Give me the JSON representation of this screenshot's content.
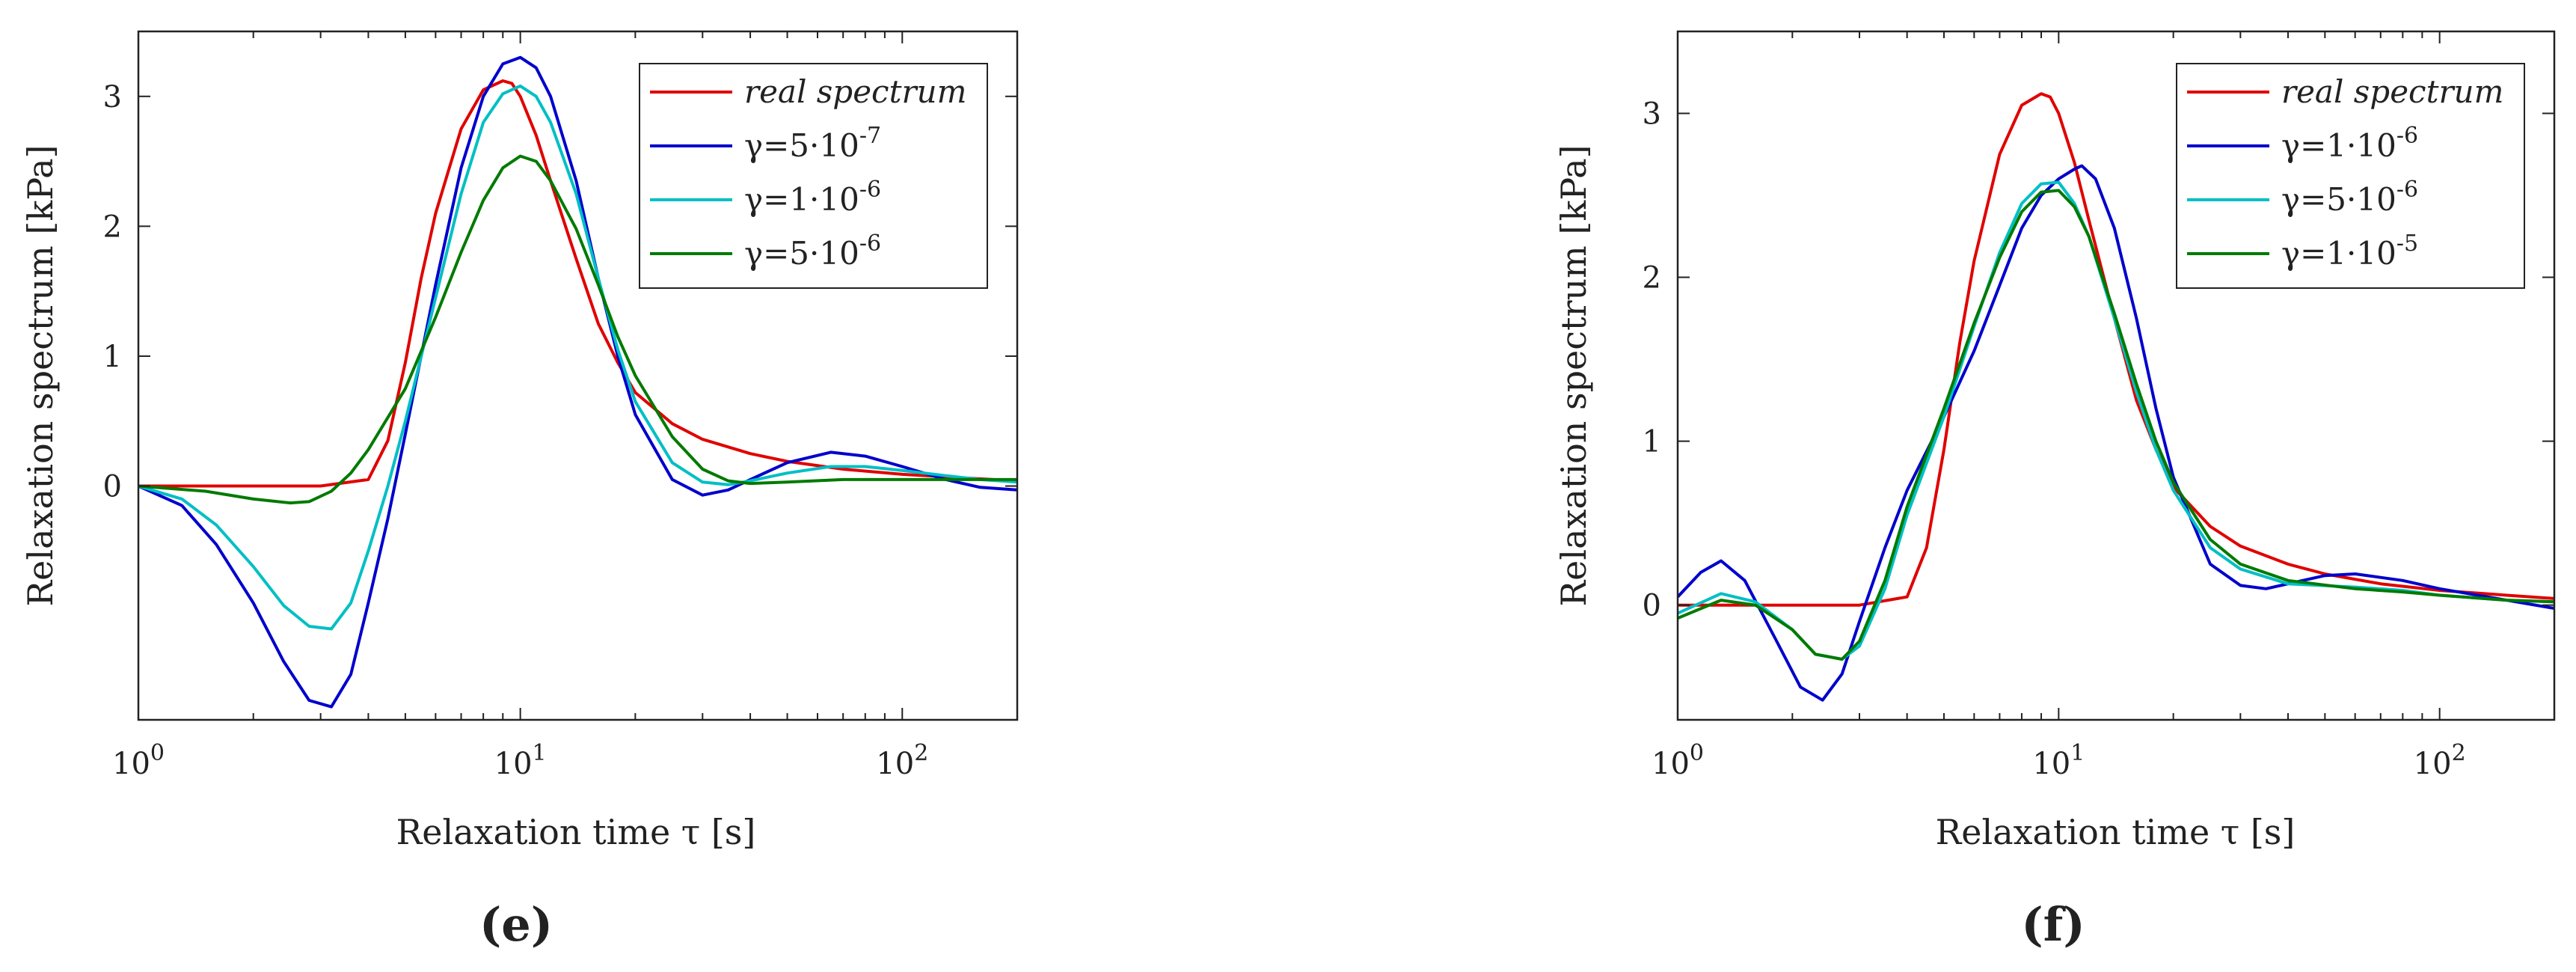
{
  "chart_data": [
    {
      "panel": "(e)",
      "type": "line",
      "xscale": "log",
      "xlabel": "Relaxation time τ [s]",
      "ylabel": "Relaxation spectrum  [kPa]",
      "xlim": [
        1,
        200
      ],
      "ylim": [
        -1.8,
        3.5
      ],
      "xticks": [
        1,
        10,
        100
      ],
      "xtick_labels": [
        {
          "base": "10",
          "exp": "0"
        },
        {
          "base": "10",
          "exp": "1"
        },
        {
          "base": "10",
          "exp": "2"
        }
      ],
      "yticks": [
        0,
        1,
        2,
        3
      ],
      "ytick_labels": [
        "0",
        "1",
        "2",
        "3"
      ],
      "legend_position": "top-right",
      "series": [
        {
          "name": "real spectrum",
          "color": "#e00000",
          "italic": true,
          "legend": {
            "prefix": "real spectrum"
          },
          "x": [
            1.0,
            2.0,
            3.0,
            4.0,
            4.5,
            5.0,
            5.5,
            6.0,
            7.0,
            8.0,
            9.0,
            9.5,
            10.0,
            11.0,
            12.0,
            14.0,
            16.0,
            18.0,
            20.0,
            25.0,
            30.0,
            40.0,
            50.0,
            70.0,
            100.0,
            150.0,
            200.0
          ],
          "y": [
            0.0,
            0.0,
            0.0,
            0.05,
            0.35,
            0.95,
            1.6,
            2.1,
            2.75,
            3.05,
            3.12,
            3.1,
            3.0,
            2.7,
            2.35,
            1.75,
            1.25,
            0.95,
            0.72,
            0.48,
            0.36,
            0.25,
            0.19,
            0.13,
            0.09,
            0.06,
            0.04
          ]
        },
        {
          "name": "γ=5·10⁻⁷",
          "color": "#0000cc",
          "italic": false,
          "legend": {
            "prefix": "γ=5·10",
            "exp": "-7"
          },
          "x": [
            1.0,
            1.3,
            1.6,
            2.0,
            2.4,
            2.8,
            3.2,
            3.6,
            4.0,
            4.5,
            5.0,
            6.0,
            7.0,
            8.0,
            9.0,
            10.0,
            11.0,
            12.0,
            14.0,
            16.0,
            18.0,
            20.0,
            25.0,
            30.0,
            35.0,
            40.0,
            50.0,
            65.0,
            80.0,
            100.0,
            130.0,
            160.0,
            200.0
          ],
          "y": [
            0.0,
            -0.15,
            -0.45,
            -0.9,
            -1.35,
            -1.65,
            -1.7,
            -1.45,
            -0.9,
            -0.25,
            0.4,
            1.55,
            2.45,
            3.0,
            3.25,
            3.3,
            3.22,
            3.0,
            2.35,
            1.6,
            1.0,
            0.55,
            0.05,
            -0.07,
            -0.03,
            0.05,
            0.18,
            0.26,
            0.23,
            0.15,
            0.05,
            -0.01,
            -0.03
          ]
        },
        {
          "name": "γ=1·10⁻⁶",
          "color": "#00bfc4",
          "italic": false,
          "legend": {
            "prefix": "γ=1·10",
            "exp": "-6"
          },
          "x": [
            1.0,
            1.3,
            1.6,
            2.0,
            2.4,
            2.8,
            3.2,
            3.6,
            4.0,
            4.5,
            5.0,
            6.0,
            7.0,
            8.0,
            9.0,
            10.0,
            11.0,
            12.0,
            14.0,
            16.0,
            18.0,
            20.0,
            25.0,
            30.0,
            35.0,
            40.0,
            50.0,
            65.0,
            80.0,
            100.0,
            130.0,
            160.0,
            200.0
          ],
          "y": [
            0.0,
            -0.1,
            -0.3,
            -0.62,
            -0.92,
            -1.08,
            -1.1,
            -0.9,
            -0.5,
            0.0,
            0.5,
            1.45,
            2.25,
            2.8,
            3.02,
            3.08,
            3.0,
            2.8,
            2.25,
            1.6,
            1.05,
            0.65,
            0.18,
            0.03,
            0.01,
            0.04,
            0.1,
            0.15,
            0.15,
            0.12,
            0.08,
            0.05,
            0.03
          ]
        },
        {
          "name": "γ=5·10⁻⁶",
          "color": "#007a00",
          "italic": false,
          "legend": {
            "prefix": "γ=5·10",
            "exp": "-6"
          },
          "x": [
            1.0,
            1.5,
            2.0,
            2.5,
            2.8,
            3.2,
            3.6,
            4.0,
            5.0,
            6.0,
            7.0,
            8.0,
            9.0,
            10.0,
            11.0,
            12.0,
            14.0,
            16.0,
            18.0,
            20.0,
            25.0,
            30.0,
            35.0,
            40.0,
            50.0,
            70.0,
            100.0,
            150.0,
            200.0
          ],
          "y": [
            0.0,
            -0.04,
            -0.1,
            -0.13,
            -0.12,
            -0.04,
            0.1,
            0.28,
            0.75,
            1.3,
            1.8,
            2.2,
            2.45,
            2.54,
            2.5,
            2.35,
            1.98,
            1.55,
            1.15,
            0.85,
            0.38,
            0.13,
            0.04,
            0.02,
            0.03,
            0.05,
            0.05,
            0.05,
            0.05
          ]
        }
      ]
    },
    {
      "panel": "(f)",
      "type": "line",
      "xscale": "log",
      "xlabel": "Relaxation time τ [s]",
      "ylabel": "Relaxation spectrum  [kPa]",
      "xlim": [
        1,
        200
      ],
      "ylim": [
        -0.7,
        3.5
      ],
      "xticks": [
        1,
        10,
        100
      ],
      "xtick_labels": [
        {
          "base": "10",
          "exp": "0"
        },
        {
          "base": "10",
          "exp": "1"
        },
        {
          "base": "10",
          "exp": "2"
        }
      ],
      "yticks": [
        0,
        1,
        2,
        3
      ],
      "ytick_labels": [
        "0",
        "1",
        "2",
        "3"
      ],
      "legend_position": "top-right",
      "series": [
        {
          "name": "real spectrum",
          "color": "#e00000",
          "italic": true,
          "legend": {
            "prefix": "real spectrum"
          },
          "x": [
            1.0,
            2.0,
            3.0,
            4.0,
            4.5,
            5.0,
            5.5,
            6.0,
            7.0,
            8.0,
            9.0,
            9.5,
            10.0,
            11.0,
            12.0,
            14.0,
            16.0,
            18.0,
            20.0,
            25.0,
            30.0,
            40.0,
            50.0,
            70.0,
            100.0,
            150.0,
            200.0
          ],
          "y": [
            0.0,
            0.0,
            0.0,
            0.05,
            0.35,
            0.95,
            1.6,
            2.1,
            2.75,
            3.05,
            3.12,
            3.1,
            3.0,
            2.7,
            2.35,
            1.75,
            1.25,
            0.95,
            0.72,
            0.48,
            0.36,
            0.25,
            0.19,
            0.13,
            0.09,
            0.06,
            0.04
          ]
        },
        {
          "name": "γ=1·10⁻⁶",
          "color": "#0000cc",
          "italic": false,
          "legend": {
            "prefix": "γ=1·10",
            "exp": "-6"
          },
          "x": [
            1.0,
            1.15,
            1.3,
            1.5,
            1.8,
            2.1,
            2.4,
            2.7,
            3.0,
            3.5,
            4.0,
            5.0,
            6.0,
            7.0,
            8.0,
            9.0,
            10.0,
            11.0,
            11.5,
            12.5,
            14.0,
            16.0,
            18.0,
            20.0,
            25.0,
            30.0,
            35.0,
            40.0,
            50.0,
            60.0,
            80.0,
            100.0,
            150.0,
            200.0
          ],
          "y": [
            0.05,
            0.2,
            0.27,
            0.15,
            -0.2,
            -0.5,
            -0.58,
            -0.42,
            -0.1,
            0.35,
            0.7,
            1.15,
            1.55,
            1.95,
            2.3,
            2.5,
            2.6,
            2.66,
            2.68,
            2.6,
            2.3,
            1.75,
            1.2,
            0.78,
            0.25,
            0.12,
            0.1,
            0.13,
            0.18,
            0.19,
            0.15,
            0.1,
            0.03,
            -0.02
          ]
        },
        {
          "name": "γ=5·10⁻⁶",
          "color": "#00bfc4",
          "italic": false,
          "legend": {
            "prefix": "γ=5·10",
            "exp": "-6"
          },
          "x": [
            1.0,
            1.3,
            1.6,
            2.0,
            2.3,
            2.7,
            3.0,
            3.5,
            4.0,
            5.0,
            6.0,
            7.0,
            8.0,
            9.0,
            10.0,
            11.0,
            12.0,
            14.0,
            16.0,
            18.0,
            20.0,
            25.0,
            30.0,
            40.0,
            60.0,
            80.0,
            100.0,
            150.0,
            200.0
          ],
          "y": [
            -0.05,
            0.07,
            0.02,
            -0.15,
            -0.3,
            -0.33,
            -0.25,
            0.1,
            0.55,
            1.15,
            1.7,
            2.15,
            2.45,
            2.57,
            2.58,
            2.45,
            2.25,
            1.75,
            1.3,
            0.95,
            0.7,
            0.35,
            0.22,
            0.13,
            0.11,
            0.09,
            0.06,
            0.03,
            0.02
          ]
        },
        {
          "name": "γ=1·10⁻⁵",
          "color": "#007a00",
          "italic": false,
          "legend": {
            "prefix": "γ=1·10",
            "exp": "-5"
          },
          "x": [
            1.0,
            1.3,
            1.6,
            2.0,
            2.3,
            2.7,
            3.0,
            3.5,
            4.0,
            5.0,
            6.0,
            7.0,
            8.0,
            9.0,
            10.0,
            11.0,
            12.0,
            14.0,
            16.0,
            18.0,
            20.0,
            25.0,
            30.0,
            40.0,
            60.0,
            80.0,
            100.0,
            150.0,
            200.0
          ],
          "y": [
            -0.08,
            0.03,
            0.0,
            -0.15,
            -0.3,
            -0.33,
            -0.22,
            0.15,
            0.6,
            1.2,
            1.72,
            2.12,
            2.4,
            2.52,
            2.53,
            2.43,
            2.25,
            1.78,
            1.35,
            1.0,
            0.75,
            0.4,
            0.25,
            0.15,
            0.1,
            0.08,
            0.06,
            0.03,
            0.02
          ]
        }
      ]
    }
  ]
}
